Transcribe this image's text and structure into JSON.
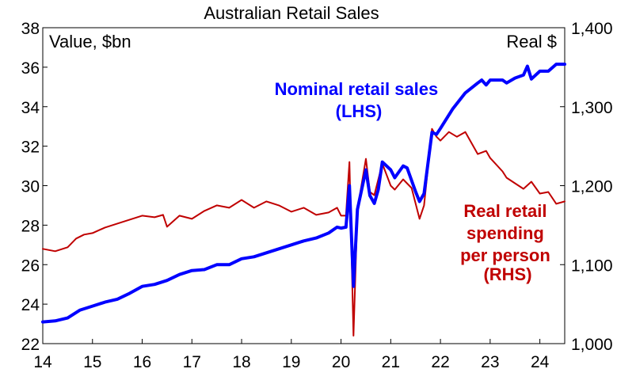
{
  "chart_data": {
    "type": "line",
    "title": "Australian Retail Sales",
    "ylabel_left": "Value, $bn",
    "ylabel_right": "Real $",
    "x_ticks": [
      "14",
      "15",
      "16",
      "17",
      "18",
      "19",
      "20",
      "21",
      "22",
      "23",
      "24"
    ],
    "xlim": [
      2014.0,
      2024.5
    ],
    "ylim_left": [
      22,
      38
    ],
    "ylim_right": [
      1000,
      1400
    ],
    "y_ticks_left": [
      "22",
      "24",
      "26",
      "28",
      "30",
      "32",
      "34",
      "36",
      "38"
    ],
    "y_ticks_right": [
      "1,000",
      "1,100",
      "1,200",
      "1,300",
      "1,400"
    ],
    "grid": false,
    "series": [
      {
        "name": "Nominal retail sales (LHS)",
        "label_lines": [
          "Nominal retail sales",
          "(LHS)"
        ],
        "axis": "left",
        "color": "#0000ff",
        "points": [
          [
            2014.0,
            23.1
          ],
          [
            2014.25,
            23.15
          ],
          [
            2014.5,
            23.3
          ],
          [
            2014.75,
            23.7
          ],
          [
            2015.0,
            23.9
          ],
          [
            2015.25,
            24.1
          ],
          [
            2015.5,
            24.25
          ],
          [
            2015.75,
            24.55
          ],
          [
            2016.0,
            24.9
          ],
          [
            2016.25,
            25.0
          ],
          [
            2016.5,
            25.2
          ],
          [
            2016.75,
            25.5
          ],
          [
            2017.0,
            25.7
          ],
          [
            2017.25,
            25.75
          ],
          [
            2017.5,
            26.0
          ],
          [
            2017.75,
            26.0
          ],
          [
            2018.0,
            26.3
          ],
          [
            2018.25,
            26.4
          ],
          [
            2018.5,
            26.6
          ],
          [
            2018.75,
            26.8
          ],
          [
            2019.0,
            27.0
          ],
          [
            2019.25,
            27.2
          ],
          [
            2019.5,
            27.35
          ],
          [
            2019.75,
            27.6
          ],
          [
            2019.92,
            27.9
          ],
          [
            2020.0,
            27.85
          ],
          [
            2020.1,
            27.9
          ],
          [
            2020.17,
            30.0
          ],
          [
            2020.25,
            24.9
          ],
          [
            2020.33,
            28.8
          ],
          [
            2020.5,
            30.8
          ],
          [
            2020.58,
            29.5
          ],
          [
            2020.67,
            29.1
          ],
          [
            2020.75,
            29.8
          ],
          [
            2020.83,
            31.2
          ],
          [
            2021.0,
            30.8
          ],
          [
            2021.08,
            30.4
          ],
          [
            2021.25,
            31.0
          ],
          [
            2021.33,
            30.9
          ],
          [
            2021.5,
            29.7
          ],
          [
            2021.58,
            29.2
          ],
          [
            2021.67,
            29.6
          ],
          [
            2021.83,
            32.7
          ],
          [
            2021.92,
            32.6
          ],
          [
            2022.0,
            32.9
          ],
          [
            2022.25,
            33.9
          ],
          [
            2022.5,
            34.7
          ],
          [
            2022.75,
            35.2
          ],
          [
            2022.83,
            35.35
          ],
          [
            2022.92,
            35.1
          ],
          [
            2023.0,
            35.35
          ],
          [
            2023.25,
            35.35
          ],
          [
            2023.33,
            35.2
          ],
          [
            2023.5,
            35.45
          ],
          [
            2023.67,
            35.6
          ],
          [
            2023.75,
            36.05
          ],
          [
            2023.83,
            35.4
          ],
          [
            2024.0,
            35.8
          ],
          [
            2024.17,
            35.8
          ],
          [
            2024.33,
            36.15
          ],
          [
            2024.5,
            36.15
          ]
        ]
      },
      {
        "name": "Real retail spending per person (RHS)",
        "label_lines": [
          "Real retail",
          "spending",
          "per person",
          "(RHS)"
        ],
        "axis": "right",
        "color": "#c00000",
        "points": [
          [
            2014.0,
            1120
          ],
          [
            2014.25,
            1117
          ],
          [
            2014.5,
            1122
          ],
          [
            2014.67,
            1133
          ],
          [
            2014.83,
            1138
          ],
          [
            2015.0,
            1140
          ],
          [
            2015.25,
            1147
          ],
          [
            2015.5,
            1152
          ],
          [
            2015.75,
            1157
          ],
          [
            2016.0,
            1162
          ],
          [
            2016.25,
            1160
          ],
          [
            2016.42,
            1163
          ],
          [
            2016.5,
            1148
          ],
          [
            2016.75,
            1162
          ],
          [
            2017.0,
            1158
          ],
          [
            2017.25,
            1168
          ],
          [
            2017.5,
            1175
          ],
          [
            2017.75,
            1172
          ],
          [
            2018.0,
            1182
          ],
          [
            2018.25,
            1172
          ],
          [
            2018.5,
            1180
          ],
          [
            2018.75,
            1175
          ],
          [
            2019.0,
            1167
          ],
          [
            2019.25,
            1172
          ],
          [
            2019.5,
            1163
          ],
          [
            2019.75,
            1166
          ],
          [
            2019.92,
            1172
          ],
          [
            2020.0,
            1162
          ],
          [
            2020.1,
            1162
          ],
          [
            2020.17,
            1230
          ],
          [
            2020.25,
            1010
          ],
          [
            2020.33,
            1170
          ],
          [
            2020.5,
            1234
          ],
          [
            2020.58,
            1192
          ],
          [
            2020.67,
            1188
          ],
          [
            2020.83,
            1228
          ],
          [
            2021.0,
            1200
          ],
          [
            2021.08,
            1195
          ],
          [
            2021.25,
            1208
          ],
          [
            2021.42,
            1197
          ],
          [
            2021.58,
            1158
          ],
          [
            2021.67,
            1175
          ],
          [
            2021.83,
            1272
          ],
          [
            2021.92,
            1262
          ],
          [
            2022.0,
            1257
          ],
          [
            2022.17,
            1268
          ],
          [
            2022.33,
            1262
          ],
          [
            2022.5,
            1268
          ],
          [
            2022.75,
            1240
          ],
          [
            2022.92,
            1244
          ],
          [
            2023.0,
            1235
          ],
          [
            2023.25,
            1218
          ],
          [
            2023.33,
            1210
          ],
          [
            2023.5,
            1203
          ],
          [
            2023.67,
            1196
          ],
          [
            2023.83,
            1205
          ],
          [
            2024.0,
            1190
          ],
          [
            2024.17,
            1192
          ],
          [
            2024.33,
            1177
          ],
          [
            2024.5,
            1180
          ]
        ]
      }
    ]
  }
}
